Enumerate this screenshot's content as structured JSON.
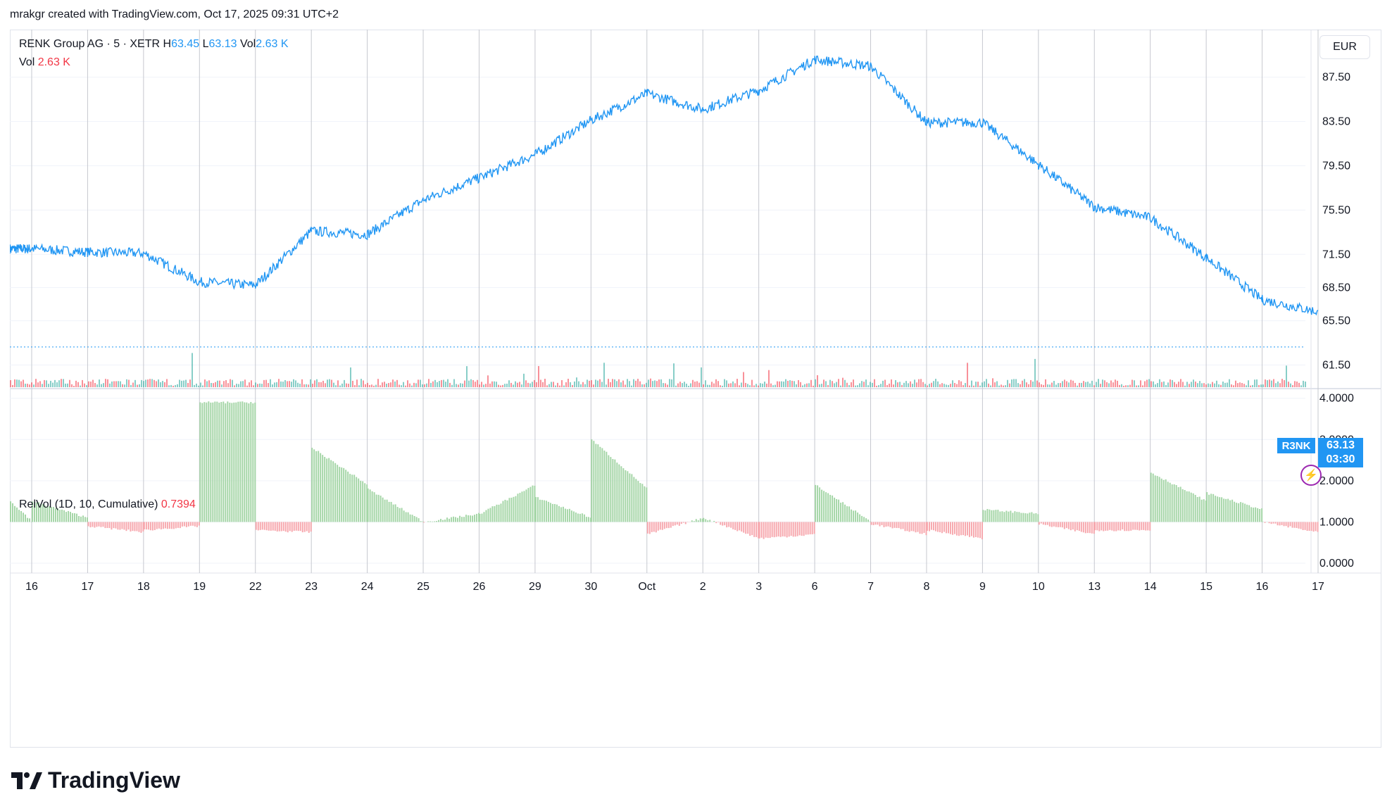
{
  "header": {
    "attribution": "mrakgr created with TradingView.com, Oct 17, 2025 09:31 UTC+2"
  },
  "legend": {
    "symbol": "RENK Group AG · 5 · XETR",
    "h_label": "H",
    "h_value": "63.45",
    "l_label": "L",
    "l_value": "63.13",
    "vol_label": "Vol",
    "vol_value": "2.63 K",
    "vol_row_label": "Vol",
    "vol_row_value": "2.63 K"
  },
  "relvol_legend": {
    "label": "RelVol (1D, 10, Cumulative)",
    "value": "0.7394"
  },
  "currency": "EUR",
  "last_price": {
    "symbol": "R3NK",
    "price": "63.13",
    "countdown": "03:30"
  },
  "logo_text": "TradingView",
  "colors": {
    "line": "#2196f3",
    "up": "#26a69a",
    "down": "#f23645",
    "relvol_up": "#a5d6a7",
    "relvol_down": "#f7a8ae",
    "grid": "#f0f3fa",
    "session": "#c6c8cf"
  },
  "chart_data": {
    "type": "line",
    "x_tick_labels": [
      "16",
      "17",
      "18",
      "19",
      "22",
      "23",
      "24",
      "25",
      "26",
      "29",
      "30",
      "Oct",
      "2",
      "3",
      "6",
      "7",
      "8",
      "9",
      "10",
      "13",
      "14",
      "15",
      "16",
      "17"
    ],
    "price_axis_labels": [
      "87.50",
      "83.50",
      "79.50",
      "75.50",
      "71.50",
      "68.50",
      "65.50",
      "61.50"
    ],
    "relvol_axis_labels": [
      "4.0000",
      "3.0000",
      "2.0000",
      "1.0000",
      "0.0000"
    ],
    "session_close_prices": [
      72.0,
      71.7,
      71.6,
      69.0,
      68.7,
      73.6,
      73.3,
      76.4,
      78.4,
      80.5,
      83.6,
      86.0,
      84.6,
      86.3,
      89.1,
      88.5,
      83.4,
      83.4,
      79.6,
      75.8,
      74.8,
      71.2,
      67.4,
      66.3
    ],
    "price_ylim": [
      59.5,
      91.8
    ],
    "relvol_start": [
      1.5,
      1.5,
      0.9,
      0.8,
      3.9,
      0.8,
      2.8,
      1.8,
      1.0,
      1.2,
      1.6,
      3.0,
      0.7,
      1.1,
      0.6,
      1.9,
      0.95,
      0.8,
      1.3,
      0.95,
      0.8,
      2.2,
      1.7,
      1.0
    ],
    "relvol_end": [
      1.0,
      1.1,
      0.75,
      0.9,
      3.9,
      0.75,
      1.9,
      1.0,
      1.2,
      1.9,
      1.1,
      1.8,
      1.1,
      0.6,
      0.7,
      1.0,
      0.7,
      0.6,
      1.2,
      0.7,
      0.8,
      1.5,
      1.3,
      0.74
    ],
    "relvol_ylim": [
      0,
      4.2
    ],
    "last_price": 63.13
  }
}
